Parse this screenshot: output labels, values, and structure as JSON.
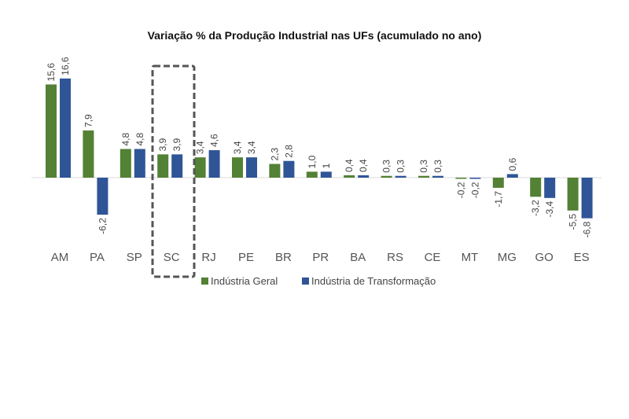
{
  "chart_data": {
    "type": "bar",
    "title": "Variação % da Produção Industrial nas UFs (acumulado no ano)",
    "categories": [
      "AM",
      "PA",
      "SP",
      "SC",
      "RJ",
      "PE",
      "BR",
      "PR",
      "BA",
      "RS",
      "CE",
      "MT",
      "MG",
      "GO",
      "ES"
    ],
    "series": [
      {
        "name": "Indústria Geral",
        "color": "#538135",
        "values": [
          15.6,
          7.9,
          4.8,
          3.9,
          3.4,
          3.4,
          2.3,
          1.0,
          0.4,
          0.3,
          0.3,
          -0.2,
          -1.7,
          -3.2,
          -5.5
        ],
        "labels": [
          "15,6",
          "7,9",
          "4,8",
          "3,9",
          "3,4",
          "3,4",
          "2,3",
          "1,0",
          "0,4",
          "0,3",
          "0,3",
          "-0,2",
          "-1,7",
          "-3,2",
          "-5,5"
        ]
      },
      {
        "name": "Indústria de Transformação",
        "color": "#2F5597",
        "values": [
          16.6,
          -6.2,
          4.8,
          3.9,
          4.6,
          3.4,
          2.8,
          1.0,
          0.4,
          0.3,
          0.3,
          -0.2,
          0.6,
          -3.4,
          -6.8
        ],
        "labels": [
          "16,6",
          "-6,2",
          "4,8",
          "3,9",
          "4,6",
          "3,4",
          "2,8",
          "1",
          "0,4",
          "0,3",
          "0,3",
          "-0,2",
          "0,6",
          "-3,4",
          "-6,8"
        ]
      }
    ],
    "highlighted_category": "SC",
    "legend_position": "bottom",
    "grid": false
  }
}
